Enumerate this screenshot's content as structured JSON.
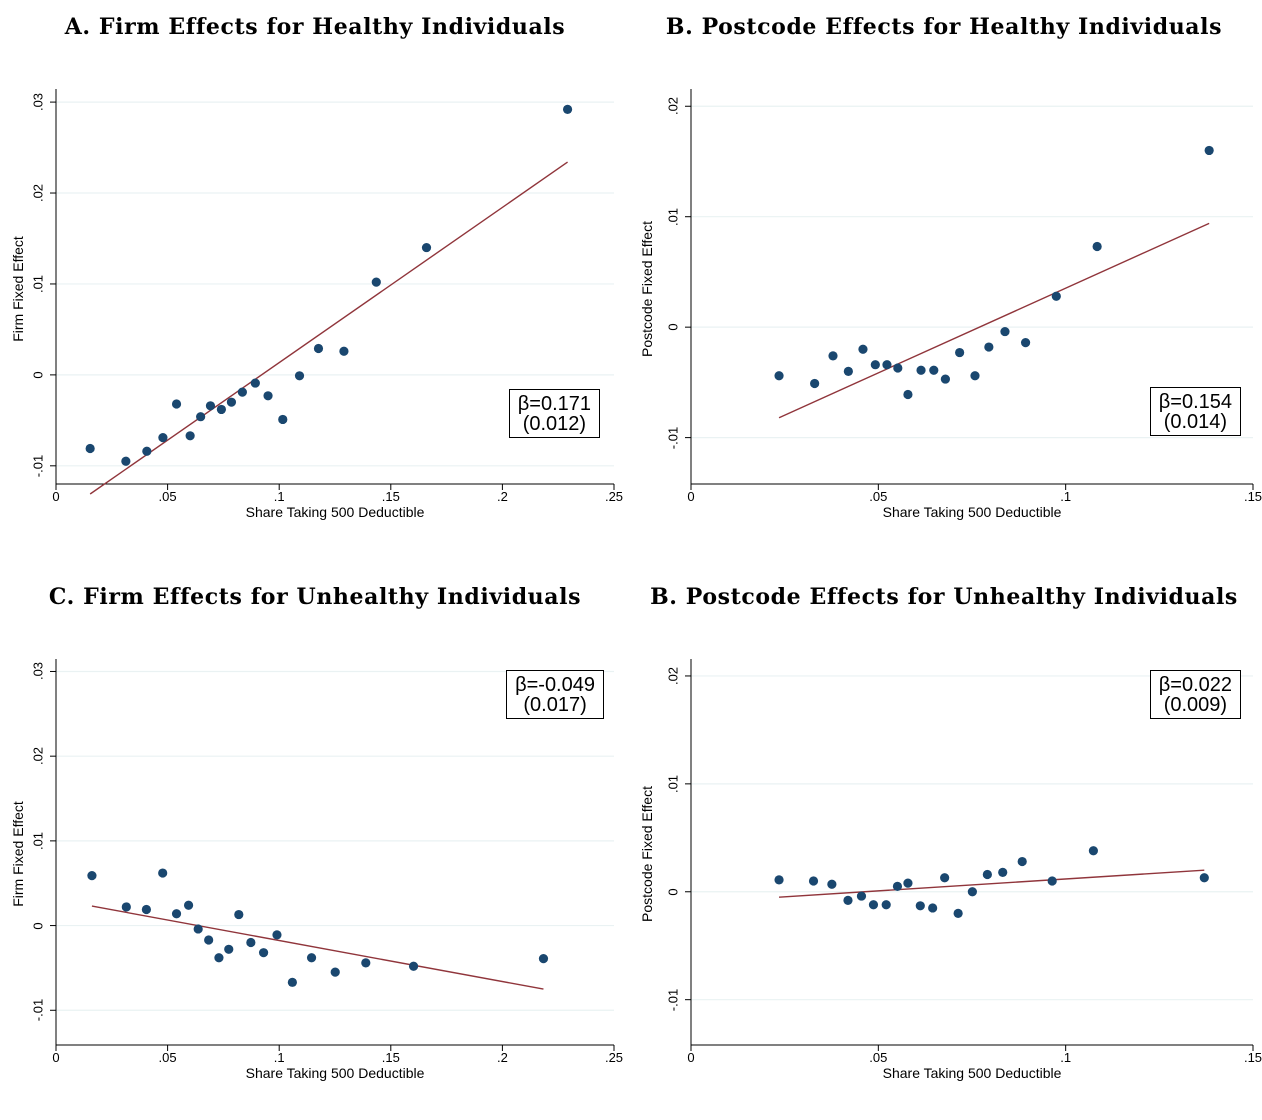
{
  "chart_data": [
    {
      "type": "scatter",
      "title": "A. Firm Effects for Healthy Individuals",
      "xlabel": "Share Taking 500 Deductible",
      "ylabel": "Firm Fixed Effect",
      "xlim": [
        0,
        0.25
      ],
      "ylim": [
        -0.012,
        0.031
      ],
      "xticks": [
        0,
        0.05,
        0.1,
        0.15,
        0.2,
        0.25
      ],
      "xtick_labels": [
        "0",
        ".05",
        ".1",
        ".15",
        ".2",
        ".25"
      ],
      "yticks": [
        -0.01,
        0,
        0.01,
        0.02,
        0.03
      ],
      "ytick_labels": [
        "-.01",
        "0",
        ".01",
        ".02",
        ".03"
      ],
      "grid": true,
      "annotation": {
        "beta": "β=0.171",
        "se": "(0.012)",
        "position": "bottom-right"
      },
      "points": {
        "x": [
          0.0153,
          0.0313,
          0.0407,
          0.0479,
          0.054,
          0.0601,
          0.0648,
          0.0692,
          0.0741,
          0.0786,
          0.0835,
          0.0893,
          0.095,
          0.1016,
          0.1091,
          0.1176,
          0.129,
          0.1435,
          0.166,
          0.2292
        ],
        "y": [
          -0.0081,
          -0.0095,
          -0.0084,
          -0.0069,
          -0.0032,
          -0.0067,
          -0.0046,
          -0.0034,
          -0.0038,
          -0.003,
          -0.0019,
          -0.0009,
          -0.0023,
          -0.0049,
          -0.0001,
          0.0029,
          0.0026,
          0.0102,
          0.014,
          0.0292
        ]
      },
      "fit_line": {
        "x": [
          0.0153,
          0.2292
        ],
        "y": [
          -0.0131,
          0.0234
        ]
      }
    },
    {
      "type": "scatter",
      "title": "B. Postcode Effects for Healthy Individuals",
      "xlabel": "Share Taking 500 Deductible",
      "ylabel": "Postcode Fixed Effect",
      "xlim": [
        0,
        0.15
      ],
      "ylim": [
        -0.0142,
        0.0212
      ],
      "xticks": [
        0,
        0.05,
        0.1,
        0.15
      ],
      "xtick_labels": [
        "0",
        ".05",
        ".1",
        ".15"
      ],
      "yticks": [
        -0.01,
        0,
        0.01,
        0.02
      ],
      "ytick_labels": [
        "-.01",
        "0",
        ".01",
        ".02"
      ],
      "grid": true,
      "annotation": {
        "beta": "β=0.154",
        "se": "(0.014)",
        "position": "bottom-right"
      },
      "points": {
        "x": [
          0.0235,
          0.033,
          0.0379,
          0.042,
          0.0459,
          0.0492,
          0.0523,
          0.0552,
          0.0579,
          0.0614,
          0.0648,
          0.0679,
          0.0717,
          0.0758,
          0.0795,
          0.0838,
          0.0893,
          0.0975,
          0.1084,
          0.1383
        ],
        "y": [
          -0.0044,
          -0.0051,
          -0.0026,
          -0.004,
          -0.002,
          -0.0034,
          -0.0034,
          -0.0037,
          -0.0061,
          -0.0039,
          -0.0039,
          -0.0047,
          -0.0023,
          -0.0044,
          -0.0018,
          -0.0004,
          -0.0014,
          0.0028,
          0.0073,
          0.016
        ]
      },
      "fit_line": {
        "x": [
          0.0235,
          0.1383
        ],
        "y": [
          -0.0082,
          0.0094
        ]
      }
    },
    {
      "type": "scatter",
      "title": "C. Firm Effects for Unhealthy Individuals",
      "xlabel": "Share Taking 500 Deductible",
      "ylabel": "Firm Fixed Effect",
      "xlim": [
        0,
        0.25
      ],
      "ylim": [
        -0.0141,
        0.031
      ],
      "xticks": [
        0,
        0.05,
        0.1,
        0.15,
        0.2,
        0.25
      ],
      "xtick_labels": [
        "0",
        ".05",
        ".1",
        ".15",
        ".2",
        ".25"
      ],
      "yticks": [
        -0.01,
        0,
        0.01,
        0.02,
        0.03
      ],
      "ytick_labels": [
        "-.01",
        "0",
        ".01",
        ".02",
        ".03"
      ],
      "grid": true,
      "annotation": {
        "beta": "β=-0.049",
        "se": "(0.017)",
        "position": "top-right"
      },
      "points": {
        "x": [
          0.0161,
          0.0315,
          0.0405,
          0.0478,
          0.054,
          0.0594,
          0.0637,
          0.0684,
          0.073,
          0.0774,
          0.0819,
          0.0873,
          0.093,
          0.099,
          0.1059,
          0.1145,
          0.1251,
          0.1388,
          0.1602,
          0.2184
        ],
        "y": [
          0.0059,
          0.0022,
          0.0019,
          0.0062,
          0.0014,
          0.0024,
          -0.0004,
          -0.0017,
          -0.0038,
          -0.0028,
          0.0013,
          -0.002,
          -0.0032,
          -0.0011,
          -0.0067,
          -0.0038,
          -0.0055,
          -0.0044,
          -0.0048,
          -0.0039
        ]
      },
      "fit_line": {
        "x": [
          0.0161,
          0.2184
        ],
        "y": [
          0.0023,
          -0.0075
        ]
      }
    },
    {
      "type": "scatter",
      "title": "B. Postcode Effects for Unhealthy Individuals",
      "xlabel": "Share Taking 500 Deductible",
      "ylabel": "Postcode Fixed Effect",
      "xlim": [
        0,
        0.15
      ],
      "ylim": [
        -0.0142,
        0.0212
      ],
      "xticks": [
        0,
        0.05,
        0.1,
        0.15
      ],
      "xtick_labels": [
        "0",
        ".05",
        ".1",
        ".15"
      ],
      "yticks": [
        -0.01,
        0,
        0.01,
        0.02
      ],
      "ytick_labels": [
        "-.01",
        "0",
        ".01",
        ".02"
      ],
      "grid": true,
      "annotation": {
        "beta": "β=0.022",
        "se": "(0.009)",
        "position": "top-right"
      },
      "points": {
        "x": [
          0.0235,
          0.0327,
          0.0376,
          0.0419,
          0.0455,
          0.0487,
          0.0521,
          0.0551,
          0.0579,
          0.0612,
          0.0645,
          0.0677,
          0.0713,
          0.0751,
          0.0791,
          0.0832,
          0.0884,
          0.0964,
          0.1074,
          0.137
        ],
        "y": [
          0.0011,
          0.001,
          0.0007,
          -0.0008,
          -0.0004,
          -0.0012,
          -0.0012,
          0.0005,
          0.0008,
          -0.0013,
          -0.0015,
          0.0013,
          -0.002,
          0.0,
          0.0016,
          0.0018,
          0.0028,
          0.001,
          0.0038,
          0.0013
        ]
      },
      "fit_line": {
        "x": [
          0.0235,
          0.137
        ],
        "y": [
          -0.0005,
          0.002
        ]
      }
    }
  ],
  "colors": {
    "point": "#1a476f",
    "fit_line": "#90353b",
    "grid": "#eaf2f3",
    "axis": "#000000"
  }
}
